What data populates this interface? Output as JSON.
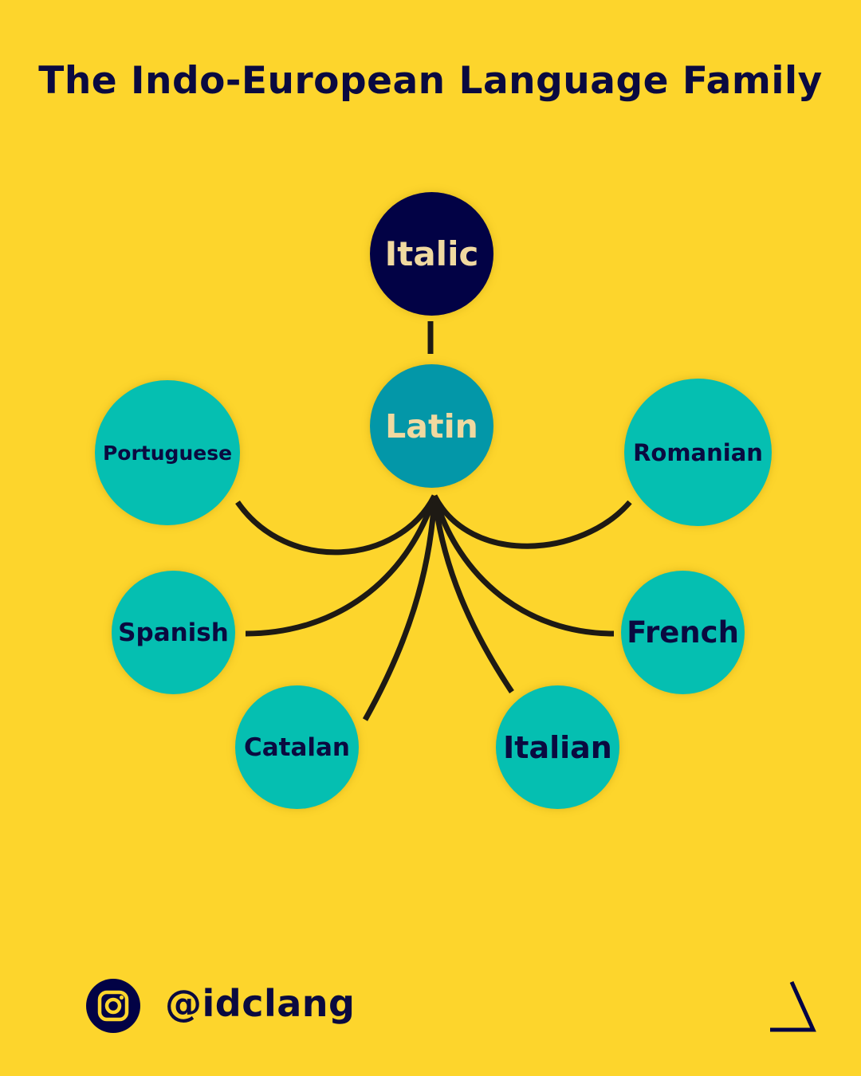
{
  "title": "The Indo-European Language Family",
  "nodes": {
    "italic": "Italic",
    "latin": "Latin",
    "portuguese": "Portuguese",
    "romanian": "Romanian",
    "spanish": "Spanish",
    "french": "French",
    "catalan": "Catalan",
    "italian": "Italian"
  },
  "footer": {
    "handle": "@idclang",
    "social_icon": "instagram-icon",
    "logo_icon": "delta-logo"
  },
  "colors": {
    "background": "#FDD52C",
    "title_text": "#0A0A40",
    "root_node": "#020245",
    "mid_node": "#0397A8",
    "leaf_node": "#05BFB1",
    "edge": "#1E1A14"
  }
}
